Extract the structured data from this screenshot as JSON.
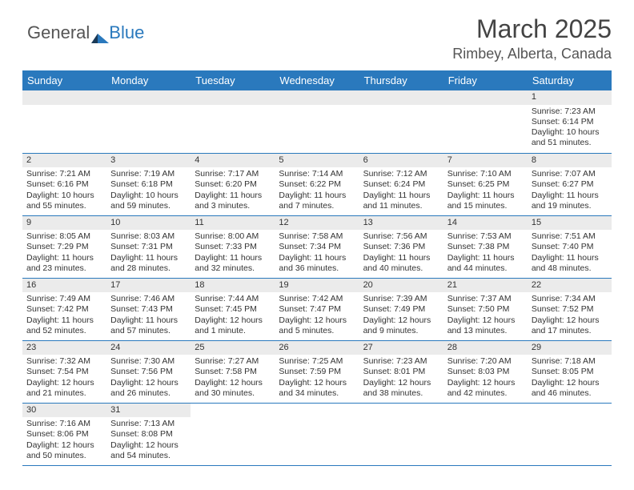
{
  "logo": {
    "text_general": "General",
    "text_blue": "Blue"
  },
  "header": {
    "month_title": "March 2025",
    "location": "Rimbey, Alberta, Canada"
  },
  "colors": {
    "header_bg": "#2a79bd",
    "header_text": "#ffffff",
    "daynum_bg": "#ebebeb",
    "cell_border": "#2a79bd",
    "body_text": "#333333",
    "title_text": "#444444"
  },
  "day_headers": [
    "Sunday",
    "Monday",
    "Tuesday",
    "Wednesday",
    "Thursday",
    "Friday",
    "Saturday"
  ],
  "weeks": [
    [
      null,
      null,
      null,
      null,
      null,
      null,
      {
        "n": "1",
        "sunrise": "Sunrise: 7:23 AM",
        "sunset": "Sunset: 6:14 PM",
        "daylight": "Daylight: 10 hours and 51 minutes."
      }
    ],
    [
      {
        "n": "2",
        "sunrise": "Sunrise: 7:21 AM",
        "sunset": "Sunset: 6:16 PM",
        "daylight": "Daylight: 10 hours and 55 minutes."
      },
      {
        "n": "3",
        "sunrise": "Sunrise: 7:19 AM",
        "sunset": "Sunset: 6:18 PM",
        "daylight": "Daylight: 10 hours and 59 minutes."
      },
      {
        "n": "4",
        "sunrise": "Sunrise: 7:17 AM",
        "sunset": "Sunset: 6:20 PM",
        "daylight": "Daylight: 11 hours and 3 minutes."
      },
      {
        "n": "5",
        "sunrise": "Sunrise: 7:14 AM",
        "sunset": "Sunset: 6:22 PM",
        "daylight": "Daylight: 11 hours and 7 minutes."
      },
      {
        "n": "6",
        "sunrise": "Sunrise: 7:12 AM",
        "sunset": "Sunset: 6:24 PM",
        "daylight": "Daylight: 11 hours and 11 minutes."
      },
      {
        "n": "7",
        "sunrise": "Sunrise: 7:10 AM",
        "sunset": "Sunset: 6:25 PM",
        "daylight": "Daylight: 11 hours and 15 minutes."
      },
      {
        "n": "8",
        "sunrise": "Sunrise: 7:07 AM",
        "sunset": "Sunset: 6:27 PM",
        "daylight": "Daylight: 11 hours and 19 minutes."
      }
    ],
    [
      {
        "n": "9",
        "sunrise": "Sunrise: 8:05 AM",
        "sunset": "Sunset: 7:29 PM",
        "daylight": "Daylight: 11 hours and 23 minutes."
      },
      {
        "n": "10",
        "sunrise": "Sunrise: 8:03 AM",
        "sunset": "Sunset: 7:31 PM",
        "daylight": "Daylight: 11 hours and 28 minutes."
      },
      {
        "n": "11",
        "sunrise": "Sunrise: 8:00 AM",
        "sunset": "Sunset: 7:33 PM",
        "daylight": "Daylight: 11 hours and 32 minutes."
      },
      {
        "n": "12",
        "sunrise": "Sunrise: 7:58 AM",
        "sunset": "Sunset: 7:34 PM",
        "daylight": "Daylight: 11 hours and 36 minutes."
      },
      {
        "n": "13",
        "sunrise": "Sunrise: 7:56 AM",
        "sunset": "Sunset: 7:36 PM",
        "daylight": "Daylight: 11 hours and 40 minutes."
      },
      {
        "n": "14",
        "sunrise": "Sunrise: 7:53 AM",
        "sunset": "Sunset: 7:38 PM",
        "daylight": "Daylight: 11 hours and 44 minutes."
      },
      {
        "n": "15",
        "sunrise": "Sunrise: 7:51 AM",
        "sunset": "Sunset: 7:40 PM",
        "daylight": "Daylight: 11 hours and 48 minutes."
      }
    ],
    [
      {
        "n": "16",
        "sunrise": "Sunrise: 7:49 AM",
        "sunset": "Sunset: 7:42 PM",
        "daylight": "Daylight: 11 hours and 52 minutes."
      },
      {
        "n": "17",
        "sunrise": "Sunrise: 7:46 AM",
        "sunset": "Sunset: 7:43 PM",
        "daylight": "Daylight: 11 hours and 57 minutes."
      },
      {
        "n": "18",
        "sunrise": "Sunrise: 7:44 AM",
        "sunset": "Sunset: 7:45 PM",
        "daylight": "Daylight: 12 hours and 1 minute."
      },
      {
        "n": "19",
        "sunrise": "Sunrise: 7:42 AM",
        "sunset": "Sunset: 7:47 PM",
        "daylight": "Daylight: 12 hours and 5 minutes."
      },
      {
        "n": "20",
        "sunrise": "Sunrise: 7:39 AM",
        "sunset": "Sunset: 7:49 PM",
        "daylight": "Daylight: 12 hours and 9 minutes."
      },
      {
        "n": "21",
        "sunrise": "Sunrise: 7:37 AM",
        "sunset": "Sunset: 7:50 PM",
        "daylight": "Daylight: 12 hours and 13 minutes."
      },
      {
        "n": "22",
        "sunrise": "Sunrise: 7:34 AM",
        "sunset": "Sunset: 7:52 PM",
        "daylight": "Daylight: 12 hours and 17 minutes."
      }
    ],
    [
      {
        "n": "23",
        "sunrise": "Sunrise: 7:32 AM",
        "sunset": "Sunset: 7:54 PM",
        "daylight": "Daylight: 12 hours and 21 minutes."
      },
      {
        "n": "24",
        "sunrise": "Sunrise: 7:30 AM",
        "sunset": "Sunset: 7:56 PM",
        "daylight": "Daylight: 12 hours and 26 minutes."
      },
      {
        "n": "25",
        "sunrise": "Sunrise: 7:27 AM",
        "sunset": "Sunset: 7:58 PM",
        "daylight": "Daylight: 12 hours and 30 minutes."
      },
      {
        "n": "26",
        "sunrise": "Sunrise: 7:25 AM",
        "sunset": "Sunset: 7:59 PM",
        "daylight": "Daylight: 12 hours and 34 minutes."
      },
      {
        "n": "27",
        "sunrise": "Sunrise: 7:23 AM",
        "sunset": "Sunset: 8:01 PM",
        "daylight": "Daylight: 12 hours and 38 minutes."
      },
      {
        "n": "28",
        "sunrise": "Sunrise: 7:20 AM",
        "sunset": "Sunset: 8:03 PM",
        "daylight": "Daylight: 12 hours and 42 minutes."
      },
      {
        "n": "29",
        "sunrise": "Sunrise: 7:18 AM",
        "sunset": "Sunset: 8:05 PM",
        "daylight": "Daylight: 12 hours and 46 minutes."
      }
    ],
    [
      {
        "n": "30",
        "sunrise": "Sunrise: 7:16 AM",
        "sunset": "Sunset: 8:06 PM",
        "daylight": "Daylight: 12 hours and 50 minutes."
      },
      {
        "n": "31",
        "sunrise": "Sunrise: 7:13 AM",
        "sunset": "Sunset: 8:08 PM",
        "daylight": "Daylight: 12 hours and 54 minutes."
      },
      null,
      null,
      null,
      null,
      null
    ]
  ]
}
